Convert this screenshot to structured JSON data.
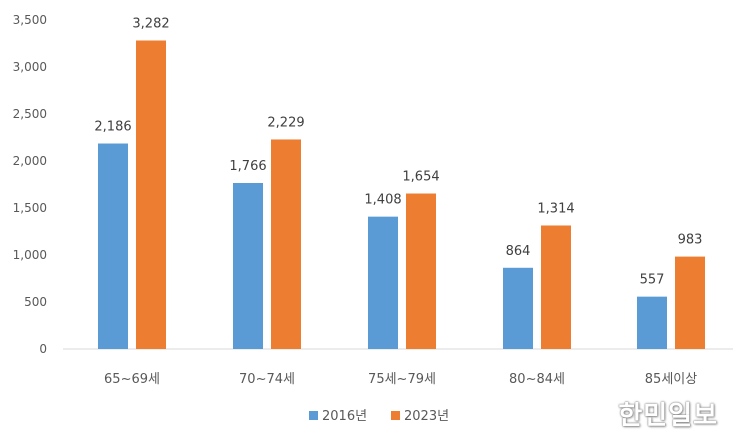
{
  "chart_data": {
    "type": "bar",
    "categories": [
      "65~69세",
      "70~74세",
      "75세~79세",
      "80~84세",
      "85세이상"
    ],
    "series": [
      {
        "name": "2016년",
        "values": [
          2186,
          1766,
          1408,
          864,
          557
        ],
        "labels": [
          "2,186",
          "1,766",
          "1,408",
          "864",
          "557"
        ]
      },
      {
        "name": "2023년",
        "values": [
          3282,
          2229,
          1654,
          1314,
          983
        ],
        "labels": [
          "3,282",
          "2,229",
          "1,654",
          "1,314",
          "983"
        ]
      }
    ],
    "ylim": [
      0,
      3500
    ],
    "yticks": [
      0,
      500,
      1000,
      1500,
      2000,
      2500,
      3000,
      3500
    ],
    "ytick_labels": [
      "0",
      "500",
      "1,000",
      "1,500",
      "2,000",
      "2,500",
      "3,000",
      "3,500"
    ],
    "legend": "bottom-center",
    "grid": false
  },
  "colors": {
    "series_2016": "#5B9BD5",
    "series_2023": "#ED7D31"
  },
  "watermark": "한민일보"
}
